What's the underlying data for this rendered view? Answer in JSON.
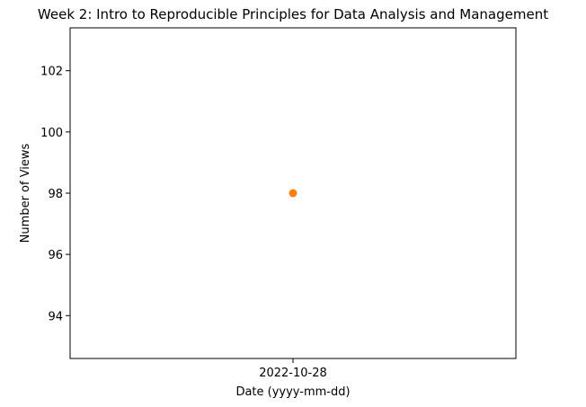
{
  "chart_data": {
    "type": "scatter",
    "title": "Week 2: Intro to Reproducible Principles for Data Analysis and Management",
    "xlabel": "Date (yyyy-mm-dd)",
    "ylabel": "Number of Views",
    "x": [
      "2022-10-28"
    ],
    "y": [
      98
    ],
    "xticks": [
      "2022-10-28"
    ],
    "yticks": [
      94,
      96,
      98,
      100,
      102
    ],
    "ylim": [
      92.6,
      103.4
    ],
    "grid": false,
    "point_color": "#ff7f0e"
  }
}
